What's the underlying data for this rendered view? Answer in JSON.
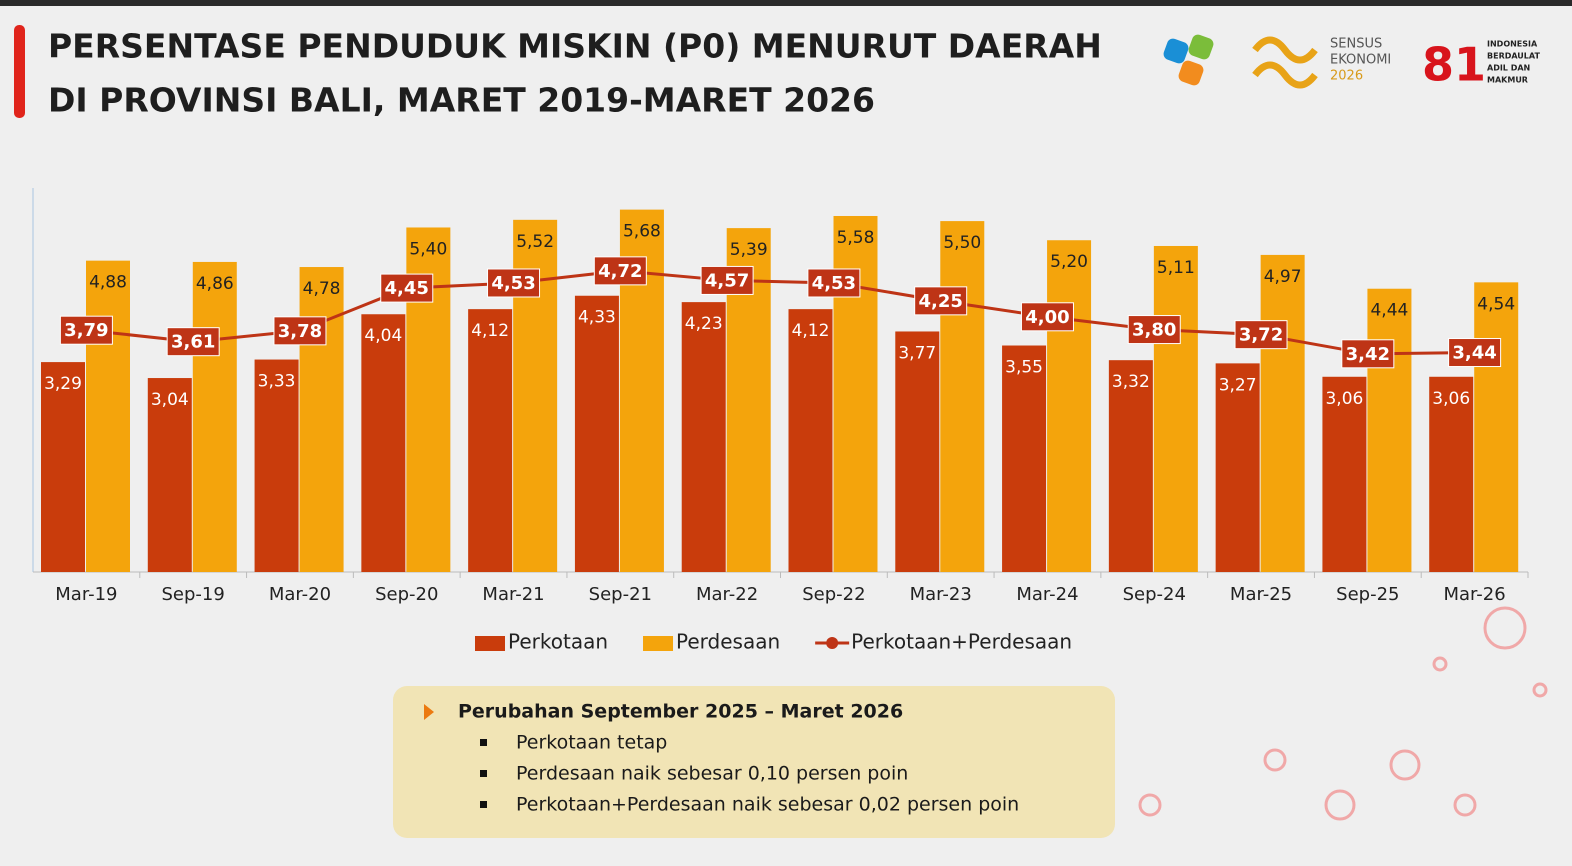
{
  "header": {
    "title": [
      "PERSENTASE PENDUDUK MISKIN (P0) MENURUT DAERAH",
      "DI PROVINSI BALI, MARET 2019-MARET 2026"
    ],
    "logo_sensus": [
      "SENSUS",
      "EKONOMI",
      "2026"
    ],
    "logo_81": [
      "INDONESIA",
      "BERDAULAT",
      "ADIL DAN",
      "MAKMUR"
    ]
  },
  "chart_data": {
    "type": "bar",
    "categories": [
      "Mar-19",
      "Sep-19",
      "Mar-20",
      "Sep-20",
      "Mar-21",
      "Sep-21",
      "Mar-22",
      "Sep-22",
      "Mar-23",
      "Mar-24",
      "Sep-24",
      "Mar-25",
      "Sep-25",
      "Mar-26"
    ],
    "series": [
      {
        "name": "Perkotaan",
        "type": "bar",
        "color": "#c93c0c",
        "values": [
          3.29,
          3.04,
          3.33,
          4.04,
          4.12,
          4.33,
          4.23,
          4.12,
          3.77,
          3.55,
          3.32,
          3.27,
          3.06,
          3.06
        ],
        "value_labels": [
          "3,29",
          "3,04",
          "3,33",
          "4,04",
          "4,12",
          "4,33",
          "4,23",
          "4,12",
          "3,77",
          "3,55",
          "3,32",
          "3,27",
          "3,06",
          "3,06"
        ]
      },
      {
        "name": "Perdesaan",
        "type": "bar",
        "color": "#f4a40c",
        "values": [
          4.88,
          4.86,
          4.78,
          5.4,
          5.52,
          5.68,
          5.39,
          5.58,
          5.5,
          5.2,
          5.11,
          4.97,
          4.44,
          4.54
        ],
        "value_labels": [
          "4,88",
          "4,86",
          "4,78",
          "5,40",
          "5,52",
          "5,68",
          "5,39",
          "5,58",
          "5,50",
          "5,20",
          "5,11",
          "4,97",
          "4,44",
          "4,54"
        ]
      },
      {
        "name": "Perkotaan+Perdesaan",
        "type": "line",
        "color": "#be3416",
        "values": [
          3.79,
          3.61,
          3.78,
          4.45,
          4.53,
          4.72,
          4.57,
          4.53,
          4.25,
          4.0,
          3.8,
          3.72,
          3.42,
          3.44
        ],
        "value_labels": [
          "3,79",
          "3,61",
          "3,78",
          "4,45",
          "4,53",
          "4,72",
          "4,57",
          "4,53",
          "4,25",
          "4,00",
          "3,80",
          "3,72",
          "3,42",
          "3,44"
        ]
      }
    ]
  },
  "notes": {
    "heading": "Perubahan September 2025 – Maret 2026",
    "items": [
      "Perkotaan tetap",
      "Perdesaan naik sebesar 0,10 persen poin",
      "Perkotaan+Perdesaan naik sebesar 0,02 persen poin"
    ]
  }
}
